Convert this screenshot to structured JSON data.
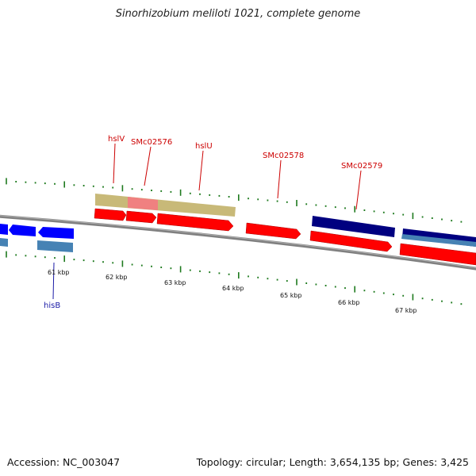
{
  "title": "Sinorhizobium meliloti 1021, complete genome",
  "footer": {
    "accession": "Accession: NC_003047",
    "summary": "Topology: circular; Length: 3,654,135 bp; Genes: 3,425"
  },
  "kbp_labels": [
    "61 kbp",
    "62 kbp",
    "63 kbp",
    "64 kbp",
    "65 kbp",
    "66 kbp",
    "67 kbp"
  ],
  "gene_labels": [
    {
      "id": "hslV",
      "text": "hslV",
      "color": "#cc0000"
    },
    {
      "id": "SMc02576",
      "text": "SMc02576",
      "color": "#cc0000"
    },
    {
      "id": "hslU",
      "text": "hslU",
      "color": "#cc0000"
    },
    {
      "id": "SMc02578",
      "text": "SMc02578",
      "color": "#cc0000"
    },
    {
      "id": "SMc02579",
      "text": "SMc02579",
      "color": "#cc0000"
    },
    {
      "id": "hisB",
      "text": "hisB",
      "color": "#1a1aa6"
    }
  ],
  "colors": {
    "backbone": "#808080",
    "tick": "#1e7a1e",
    "forward_gene": "#ff0000",
    "reverse_gene": "#0000ff",
    "operon": "#c8b978",
    "operon_highlight": "#f08080",
    "navy_feature": "#000080",
    "steel_feature": "#4682b4"
  }
}
